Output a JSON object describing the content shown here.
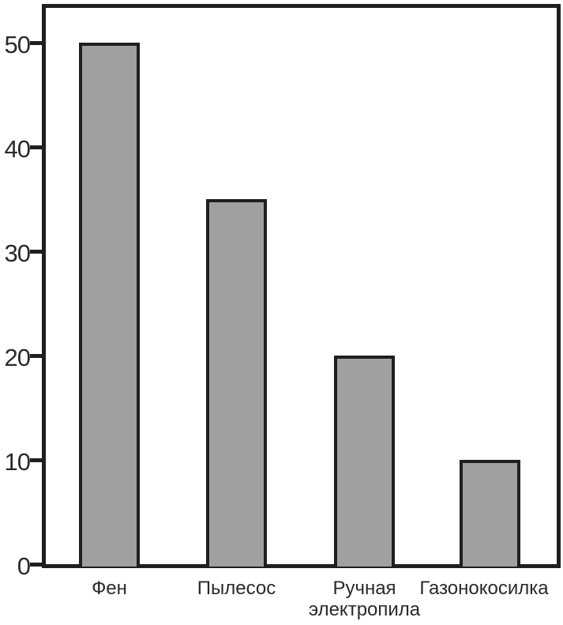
{
  "chart_data": {
    "type": "bar",
    "title": "",
    "xlabel": "",
    "ylabel": "",
    "categories": [
      "Фен",
      "Пылесос",
      "Ручная\nэлектропила",
      "Газонокосилка"
    ],
    "values": [
      50,
      35,
      20,
      10
    ],
    "yticks": [
      0,
      10,
      20,
      30,
      40,
      50
    ],
    "ylim": [
      0,
      53.5
    ],
    "grid": false,
    "legend": "none",
    "colors": {
      "bar_fill": "#a0a0a0",
      "bar_stroke": "#1f1f1f",
      "axis_stroke": "#1f1f1f",
      "text": "#2a2a2a",
      "background": "#ffffff"
    }
  }
}
